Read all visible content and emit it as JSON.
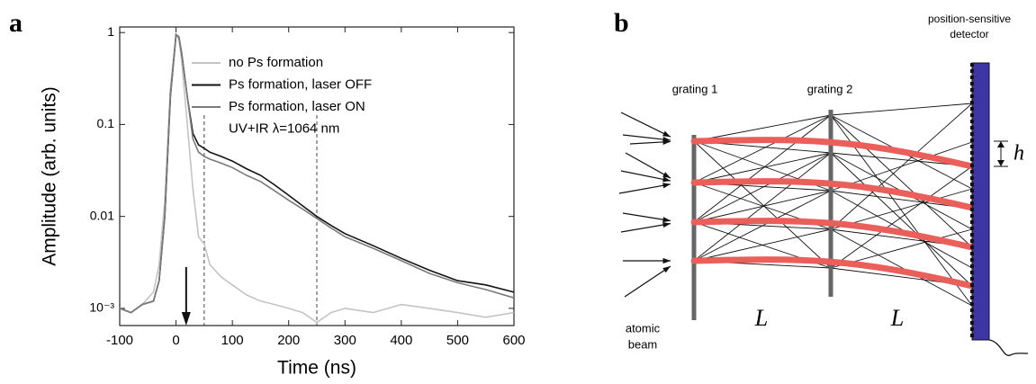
{
  "panel_labels": [
    "a",
    "b"
  ],
  "chart_data": {
    "type": "line",
    "x_label": "Time (ns)",
    "y_label": "Amplitude (arb. units)",
    "x": [
      -100,
      -80,
      -60,
      -40,
      -30,
      -20,
      -10,
      0,
      5,
      10,
      20,
      30,
      40,
      50,
      60,
      80,
      100,
      125,
      150,
      175,
      200,
      225,
      250,
      275,
      300,
      350,
      400,
      450,
      500,
      550,
      600
    ],
    "series": [
      {
        "name": "no Ps formation",
        "color": "#c4c4c4",
        "values": [
          0.001,
          0.0009,
          0.0011,
          0.0015,
          0.003,
          0.015,
          0.25,
          0.95,
          0.85,
          0.5,
          0.1,
          0.02,
          0.006,
          0.005,
          0.003,
          0.0022,
          0.0018,
          0.0014,
          0.0012,
          0.0011,
          0.001,
          0.0009,
          0.0007,
          0.0009,
          0.001,
          0.0009,
          0.0011,
          0.001,
          0.0009,
          0.0008,
          0.0009
        ]
      },
      {
        "name": "Ps formation, laser OFF",
        "color": "#111111",
        "values": [
          0.001,
          0.0009,
          0.0011,
          0.0012,
          0.002,
          0.01,
          0.2,
          0.95,
          0.9,
          0.6,
          0.2,
          0.08,
          0.06,
          0.055,
          0.05,
          0.045,
          0.04,
          0.033,
          0.028,
          0.022,
          0.017,
          0.013,
          0.01,
          0.008,
          0.0065,
          0.0048,
          0.0035,
          0.0026,
          0.002,
          0.0018,
          0.0015
        ]
      },
      {
        "name": "Ps formation, laser ON",
        "color": "#7a7a7a",
        "values": [
          0.001,
          0.0009,
          0.0011,
          0.0012,
          0.002,
          0.01,
          0.2,
          0.95,
          0.9,
          0.6,
          0.2,
          0.07,
          0.05,
          0.045,
          0.042,
          0.038,
          0.034,
          0.028,
          0.024,
          0.019,
          0.015,
          0.012,
          0.0095,
          0.0075,
          0.006,
          0.0045,
          0.0033,
          0.0024,
          0.0019,
          0.0016,
          0.0013
        ]
      }
    ],
    "annotation": "UV+IR λ=1064 nm",
    "vlines": [
      50,
      250
    ],
    "arrow_x": 18,
    "xlim": [
      -100,
      600
    ],
    "xticks": [
      -100,
      0,
      100,
      200,
      300,
      400,
      500,
      600
    ],
    "ylim": [
      0.00065,
      1.15
    ],
    "ylog": true,
    "yticks": [
      {
        "value": 0.001,
        "label": "10⁻³"
      },
      0.01,
      0.1,
      1
    ],
    "legend": "upper right"
  },
  "diagram": {
    "detector_label": [
      "position-sensitive",
      "detector"
    ],
    "grating_1": "grating 1",
    "grating_2": "grating 2",
    "h": "h",
    "source_label": [
      "atomic",
      "beam"
    ],
    "distance_1": "L",
    "distance_2": "L"
  }
}
